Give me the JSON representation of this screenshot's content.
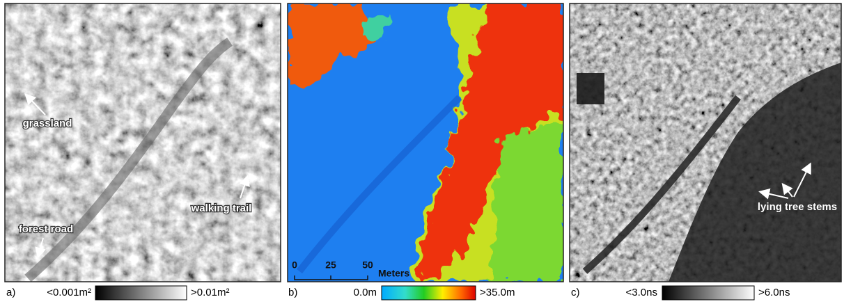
{
  "panels": [
    {
      "label": "a)",
      "legend": {
        "min": "<0.001m²",
        "max": ">0.01m²"
      },
      "annotations": [
        "grassland",
        "walking trail",
        "forest road"
      ]
    },
    {
      "label": "b)",
      "legend": {
        "min": "0.0m",
        "max": ">35.0m"
      },
      "scale_bar": {
        "ticks": [
          "0",
          "25",
          "50"
        ],
        "unit": "Meters"
      }
    },
    {
      "label": "c)",
      "legend": {
        "min": "<3.0ns",
        "max": ">6.0ns"
      },
      "annotations": [
        "lying tree stems"
      ]
    }
  ]
}
